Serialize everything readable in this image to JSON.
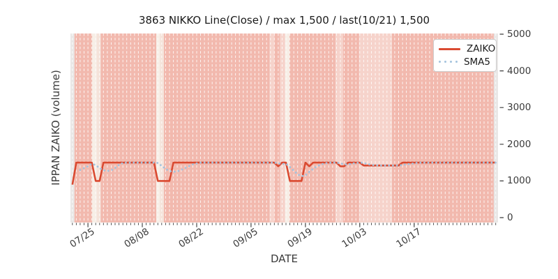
{
  "title": "3863 NIKKO Line(Close) / max 1,500 / last(10/21) 1,500",
  "ylabel": "IPPAN ZAIKO (volume)",
  "xlabel": "DATE",
  "legend": [
    {
      "label": "ZAIKO",
      "style": "solid-line",
      "color": "#da4a31"
    },
    {
      "label": "SMA5",
      "style": "dotted-line",
      "color": "#a3c3de"
    }
  ],
  "chart_data": {
    "type": "line",
    "title": "3863 NIKKO Line(Close) / max 1,500 / last(10/21) 1,500",
    "xlabel": "DATE",
    "ylabel": "IPPAN ZAIKO (volume)",
    "max_value": 1500,
    "last_date": "10/21",
    "last_value": 1500,
    "x_axis": {
      "unit": "day-index",
      "domain": [
        -0.5,
        109.6
      ],
      "minor_tick_every": 1,
      "major_ticks": [
        {
          "day": 4,
          "label": "07/25"
        },
        {
          "day": 18,
          "label": "08/08"
        },
        {
          "day": 32,
          "label": "08/22"
        },
        {
          "day": 46,
          "label": "09/05"
        },
        {
          "day": 60,
          "label": "09/19"
        },
        {
          "day": 74,
          "label": "10/03"
        },
        {
          "day": 88,
          "label": "10/17"
        }
      ]
    },
    "y_axis": {
      "side": "right",
      "ticks": [
        0,
        1000,
        2000,
        3000,
        4000,
        5000
      ],
      "range": [
        -130,
        5030
      ]
    },
    "grid": {
      "vertical_day_lines": true,
      "color": "rgba(255,255,255,0.85)",
      "dashed": true
    },
    "series": [
      {
        "name": "ZAIKO",
        "style": "solid",
        "color": "#da4a31",
        "width": 2.6,
        "points": [
          [
            0,
            900
          ],
          [
            1,
            1500
          ],
          [
            5,
            1500
          ],
          [
            6,
            1000
          ],
          [
            7,
            1000
          ],
          [
            8,
            1500
          ],
          [
            21,
            1500
          ],
          [
            22,
            1000
          ],
          [
            25,
            1000
          ],
          [
            26,
            1500
          ],
          [
            52,
            1500
          ],
          [
            53,
            1400
          ],
          [
            54,
            1500
          ],
          [
            55,
            1500
          ],
          [
            56,
            1000
          ],
          [
            59,
            1000
          ],
          [
            60,
            1500
          ],
          [
            61,
            1400
          ],
          [
            62,
            1500
          ],
          [
            68,
            1500
          ],
          [
            69,
            1400
          ],
          [
            70,
            1400
          ],
          [
            71,
            1500
          ],
          [
            74,
            1500
          ],
          [
            75,
            1420
          ],
          [
            84,
            1420
          ],
          [
            85,
            1500
          ],
          [
            109,
            1500
          ]
        ]
      },
      {
        "name": "SMA5",
        "style": "dotted",
        "color": "#a3c3de",
        "width": 2.8,
        "points": [
          [
            2,
            1300
          ],
          [
            4,
            1400
          ],
          [
            5,
            1470
          ],
          [
            6,
            1430
          ],
          [
            7,
            1350
          ],
          [
            8,
            1290
          ],
          [
            9,
            1270
          ],
          [
            10,
            1290
          ],
          [
            11,
            1350
          ],
          [
            12,
            1440
          ],
          [
            13,
            1490
          ],
          [
            14,
            1500
          ],
          [
            21,
            1500
          ],
          [
            22,
            1490
          ],
          [
            23,
            1410
          ],
          [
            24,
            1330
          ],
          [
            25,
            1270
          ],
          [
            26,
            1250
          ],
          [
            27,
            1260
          ],
          [
            28,
            1300
          ],
          [
            29,
            1350
          ],
          [
            30,
            1400
          ],
          [
            31,
            1450
          ],
          [
            32,
            1480
          ],
          [
            33,
            1500
          ],
          [
            52,
            1500
          ],
          [
            53,
            1480
          ],
          [
            54,
            1460
          ],
          [
            55,
            1470
          ],
          [
            56,
            1380
          ],
          [
            57,
            1280
          ],
          [
            58,
            1180
          ],
          [
            59,
            1130
          ],
          [
            60,
            1150
          ],
          [
            61,
            1250
          ],
          [
            62,
            1330
          ],
          [
            63,
            1400
          ],
          [
            64,
            1450
          ],
          [
            65,
            1480
          ],
          [
            66,
            1500
          ],
          [
            68,
            1500
          ],
          [
            69,
            1480
          ],
          [
            70,
            1450
          ],
          [
            71,
            1450
          ],
          [
            72,
            1470
          ],
          [
            73,
            1490
          ],
          [
            74,
            1500
          ],
          [
            75,
            1490
          ],
          [
            76,
            1460
          ],
          [
            77,
            1440
          ],
          [
            78,
            1425
          ],
          [
            79,
            1420
          ],
          [
            84,
            1420
          ],
          [
            85,
            1435
          ],
          [
            86,
            1450
          ],
          [
            87,
            1465
          ],
          [
            88,
            1480
          ],
          [
            89,
            1500
          ],
          [
            109,
            1500
          ]
        ]
      }
    ],
    "band_colors": {
      "pink": "#f2b9ae",
      "pale": "#f6d3cb",
      "cream": "#f7efe7",
      "pinkcream": "#f5e3da",
      "grey": "#e9e7e6"
    },
    "background_bands": [
      {
        "from": -0.5,
        "to": 0.52,
        "color": "grey"
      },
      {
        "from": 0.52,
        "to": 5.12,
        "color": "pink"
      },
      {
        "from": 5.12,
        "to": 6.2,
        "color": "cream"
      },
      {
        "from": 6.2,
        "to": 7.28,
        "color": "pinkcream"
      },
      {
        "from": 7.28,
        "to": 21.6,
        "color": "pink"
      },
      {
        "from": 21.6,
        "to": 22.54,
        "color": "cream"
      },
      {
        "from": 22.54,
        "to": 23.57,
        "color": "pinkcream"
      },
      {
        "from": 23.57,
        "to": 50.8,
        "color": "pink"
      },
      {
        "from": 50.8,
        "to": 52.0,
        "color": "pale"
      },
      {
        "from": 52.0,
        "to": 53.46,
        "color": "pink"
      },
      {
        "from": 53.46,
        "to": 54.8,
        "color": "pale"
      },
      {
        "from": 54.8,
        "to": 55.88,
        "color": "cream"
      },
      {
        "from": 55.88,
        "to": 67.74,
        "color": "pink"
      },
      {
        "from": 67.74,
        "to": 69.71,
        "color": "pale"
      },
      {
        "from": 69.71,
        "to": 73.84,
        "color": "pink"
      },
      {
        "from": 73.84,
        "to": 82.29,
        "color": "pale"
      },
      {
        "from": 82.29,
        "to": 108.5,
        "color": "pink"
      },
      {
        "from": 108.5,
        "to": 109.6,
        "color": "grey"
      }
    ]
  }
}
